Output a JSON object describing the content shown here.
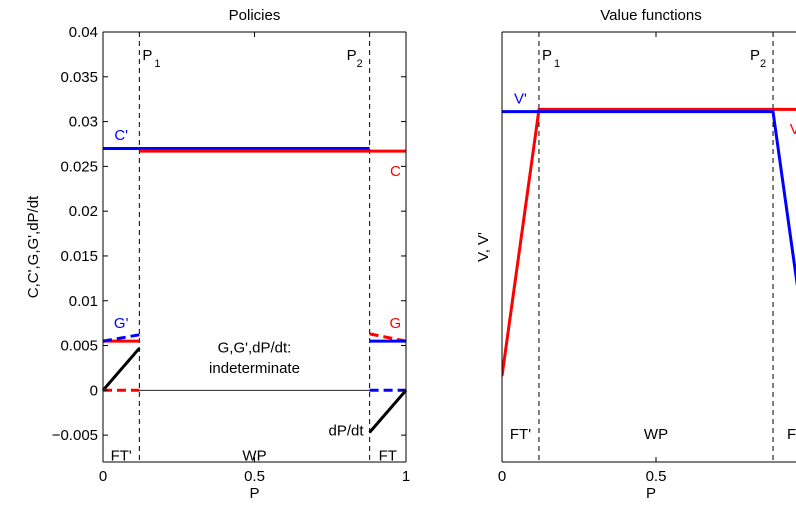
{
  "chart_data": [
    {
      "type": "line",
      "title": "Policies",
      "xlabel": "P",
      "ylabel": "C,C',G,G',dP/dt",
      "xlim": [
        0,
        1
      ],
      "ylim": [
        -0.008,
        0.04
      ],
      "xticks": [
        0,
        0.5,
        1
      ],
      "xtick_labels": [
        "0",
        "0.5",
        "1"
      ],
      "yticks": [
        -0.005,
        0,
        0.005,
        0.01,
        0.015,
        0.02,
        0.025,
        0.03,
        0.035,
        0.04
      ],
      "ytick_labels": [
        "−0.005",
        "0",
        "0.005",
        "0.01",
        "0.015",
        "0.02",
        "0.025",
        "0.03",
        "0.035",
        "0.04"
      ],
      "grid": false,
      "vlines": [
        {
          "x": 0.12,
          "label": "P",
          "sub": "1"
        },
        {
          "x": 0.88,
          "label": "P",
          "sub": "2"
        }
      ],
      "series": [
        {
          "color": "#0000ff",
          "style": "solid",
          "x": [
            0,
            0.88
          ],
          "y": [
            0.027,
            0.027
          ]
        },
        {
          "color": "#ff0000",
          "style": "solid",
          "x": [
            0.12,
            1
          ],
          "y": [
            0.0267,
            0.0267
          ]
        },
        {
          "color": "#ff0000",
          "style": "solid",
          "x": [
            0,
            0.12
          ],
          "y": [
            0.0055,
            0.0055
          ]
        },
        {
          "color": "#0000ff",
          "style": "dashed",
          "x": [
            0,
            0.12
          ],
          "y": [
            0.0055,
            0.0062
          ]
        },
        {
          "color": "#ff0000",
          "style": "dashed",
          "x": [
            0.88,
            1
          ],
          "y": [
            0.0063,
            0.0055
          ]
        },
        {
          "color": "#0000ff",
          "style": "solid",
          "x": [
            0.88,
            1
          ],
          "y": [
            0.0055,
            0.0055
          ]
        },
        {
          "color": "#000000",
          "style": "solid",
          "x": [
            0,
            0.12
          ],
          "y": [
            0,
            0.0047
          ]
        },
        {
          "color": "#000000",
          "style": "solid",
          "x": [
            0.88,
            1
          ],
          "y": [
            -0.0047,
            0
          ]
        },
        {
          "color": "#000000",
          "style": "thin",
          "x": [
            0.12,
            0.88
          ],
          "y": [
            0,
            0
          ]
        },
        {
          "color": "#ff0000",
          "style": "dashed",
          "x": [
            0,
            0.12
          ],
          "y": [
            0,
            0
          ]
        },
        {
          "color": "#0000ff",
          "style": "dashed",
          "x": [
            0.88,
            1
          ],
          "y": [
            0,
            0
          ]
        }
      ],
      "annotations": [
        {
          "text": "C'",
          "x": 0.06,
          "y": 0.0285,
          "color": "#0000ff",
          "anchor": "middle"
        },
        {
          "text": "C",
          "x": 0.965,
          "y": 0.0245,
          "color": "#ff0000",
          "anchor": "middle"
        },
        {
          "text": "G'",
          "x": 0.06,
          "y": 0.0075,
          "color": "#0000ff",
          "anchor": "middle"
        },
        {
          "text": "G",
          "x": 0.965,
          "y": 0.0075,
          "color": "#ff0000",
          "anchor": "middle"
        },
        {
          "text": "G,G',dP/dt:",
          "x": 0.5,
          "y": 0.0048,
          "color": "#000000",
          "anchor": "middle"
        },
        {
          "text": "indeterminate",
          "x": 0.5,
          "y": 0.0025,
          "color": "#000000",
          "anchor": "middle"
        },
        {
          "text": "dP/dt",
          "x": 0.86,
          "y": -0.0045,
          "color": "#000000",
          "anchor": "end"
        },
        {
          "text": "FT'",
          "x": 0.06,
          "y": -0.0073,
          "color": "#000000",
          "anchor": "middle"
        },
        {
          "text": "WP",
          "x": 0.5,
          "y": -0.0073,
          "color": "#000000",
          "anchor": "middle"
        },
        {
          "text": "FT",
          "x": 0.94,
          "y": -0.0073,
          "color": "#000000",
          "anchor": "middle"
        }
      ]
    },
    {
      "type": "line",
      "title": "Value functions",
      "xlabel": "P",
      "ylabel": "V, V'",
      "xlim": [
        0,
        1
      ],
      "ylim": [
        0,
        1
      ],
      "xticks": [
        0,
        0.5
      ],
      "xtick_labels": [
        "0",
        "0.5"
      ],
      "yticks": [],
      "ytick_labels": [],
      "grid": false,
      "vlines": [
        {
          "x": 0.12,
          "label": "P",
          "sub": "1"
        },
        {
          "x": 0.88,
          "label": "P",
          "sub": "2"
        }
      ],
      "series": [
        {
          "color": "#ff0000",
          "style": "solid",
          "x": [
            0,
            0.12,
            1.05
          ],
          "y": [
            0.2,
            0.82,
            0.82
          ]
        },
        {
          "color": "#0000ff",
          "style": "solid",
          "x": [
            0,
            0.88,
            1.0
          ],
          "y": [
            0.815,
            0.815,
            0.2
          ]
        }
      ],
      "annotations": [
        {
          "text": "V'",
          "x": 0.06,
          "y": 0.845,
          "color": "#0000ff",
          "anchor": "middle"
        },
        {
          "text": "V'",
          "x": 0.955,
          "y": 0.775,
          "color": "#ff0000",
          "anchor": "middle"
        },
        {
          "text": "FT'",
          "x": 0.06,
          "y": 0.065,
          "color": "#000000",
          "anchor": "middle"
        },
        {
          "text": "WP",
          "x": 0.5,
          "y": 0.065,
          "color": "#000000",
          "anchor": "middle"
        },
        {
          "text": "FT",
          "x": 0.955,
          "y": 0.065,
          "color": "#000000",
          "anchor": "middle"
        }
      ]
    }
  ]
}
